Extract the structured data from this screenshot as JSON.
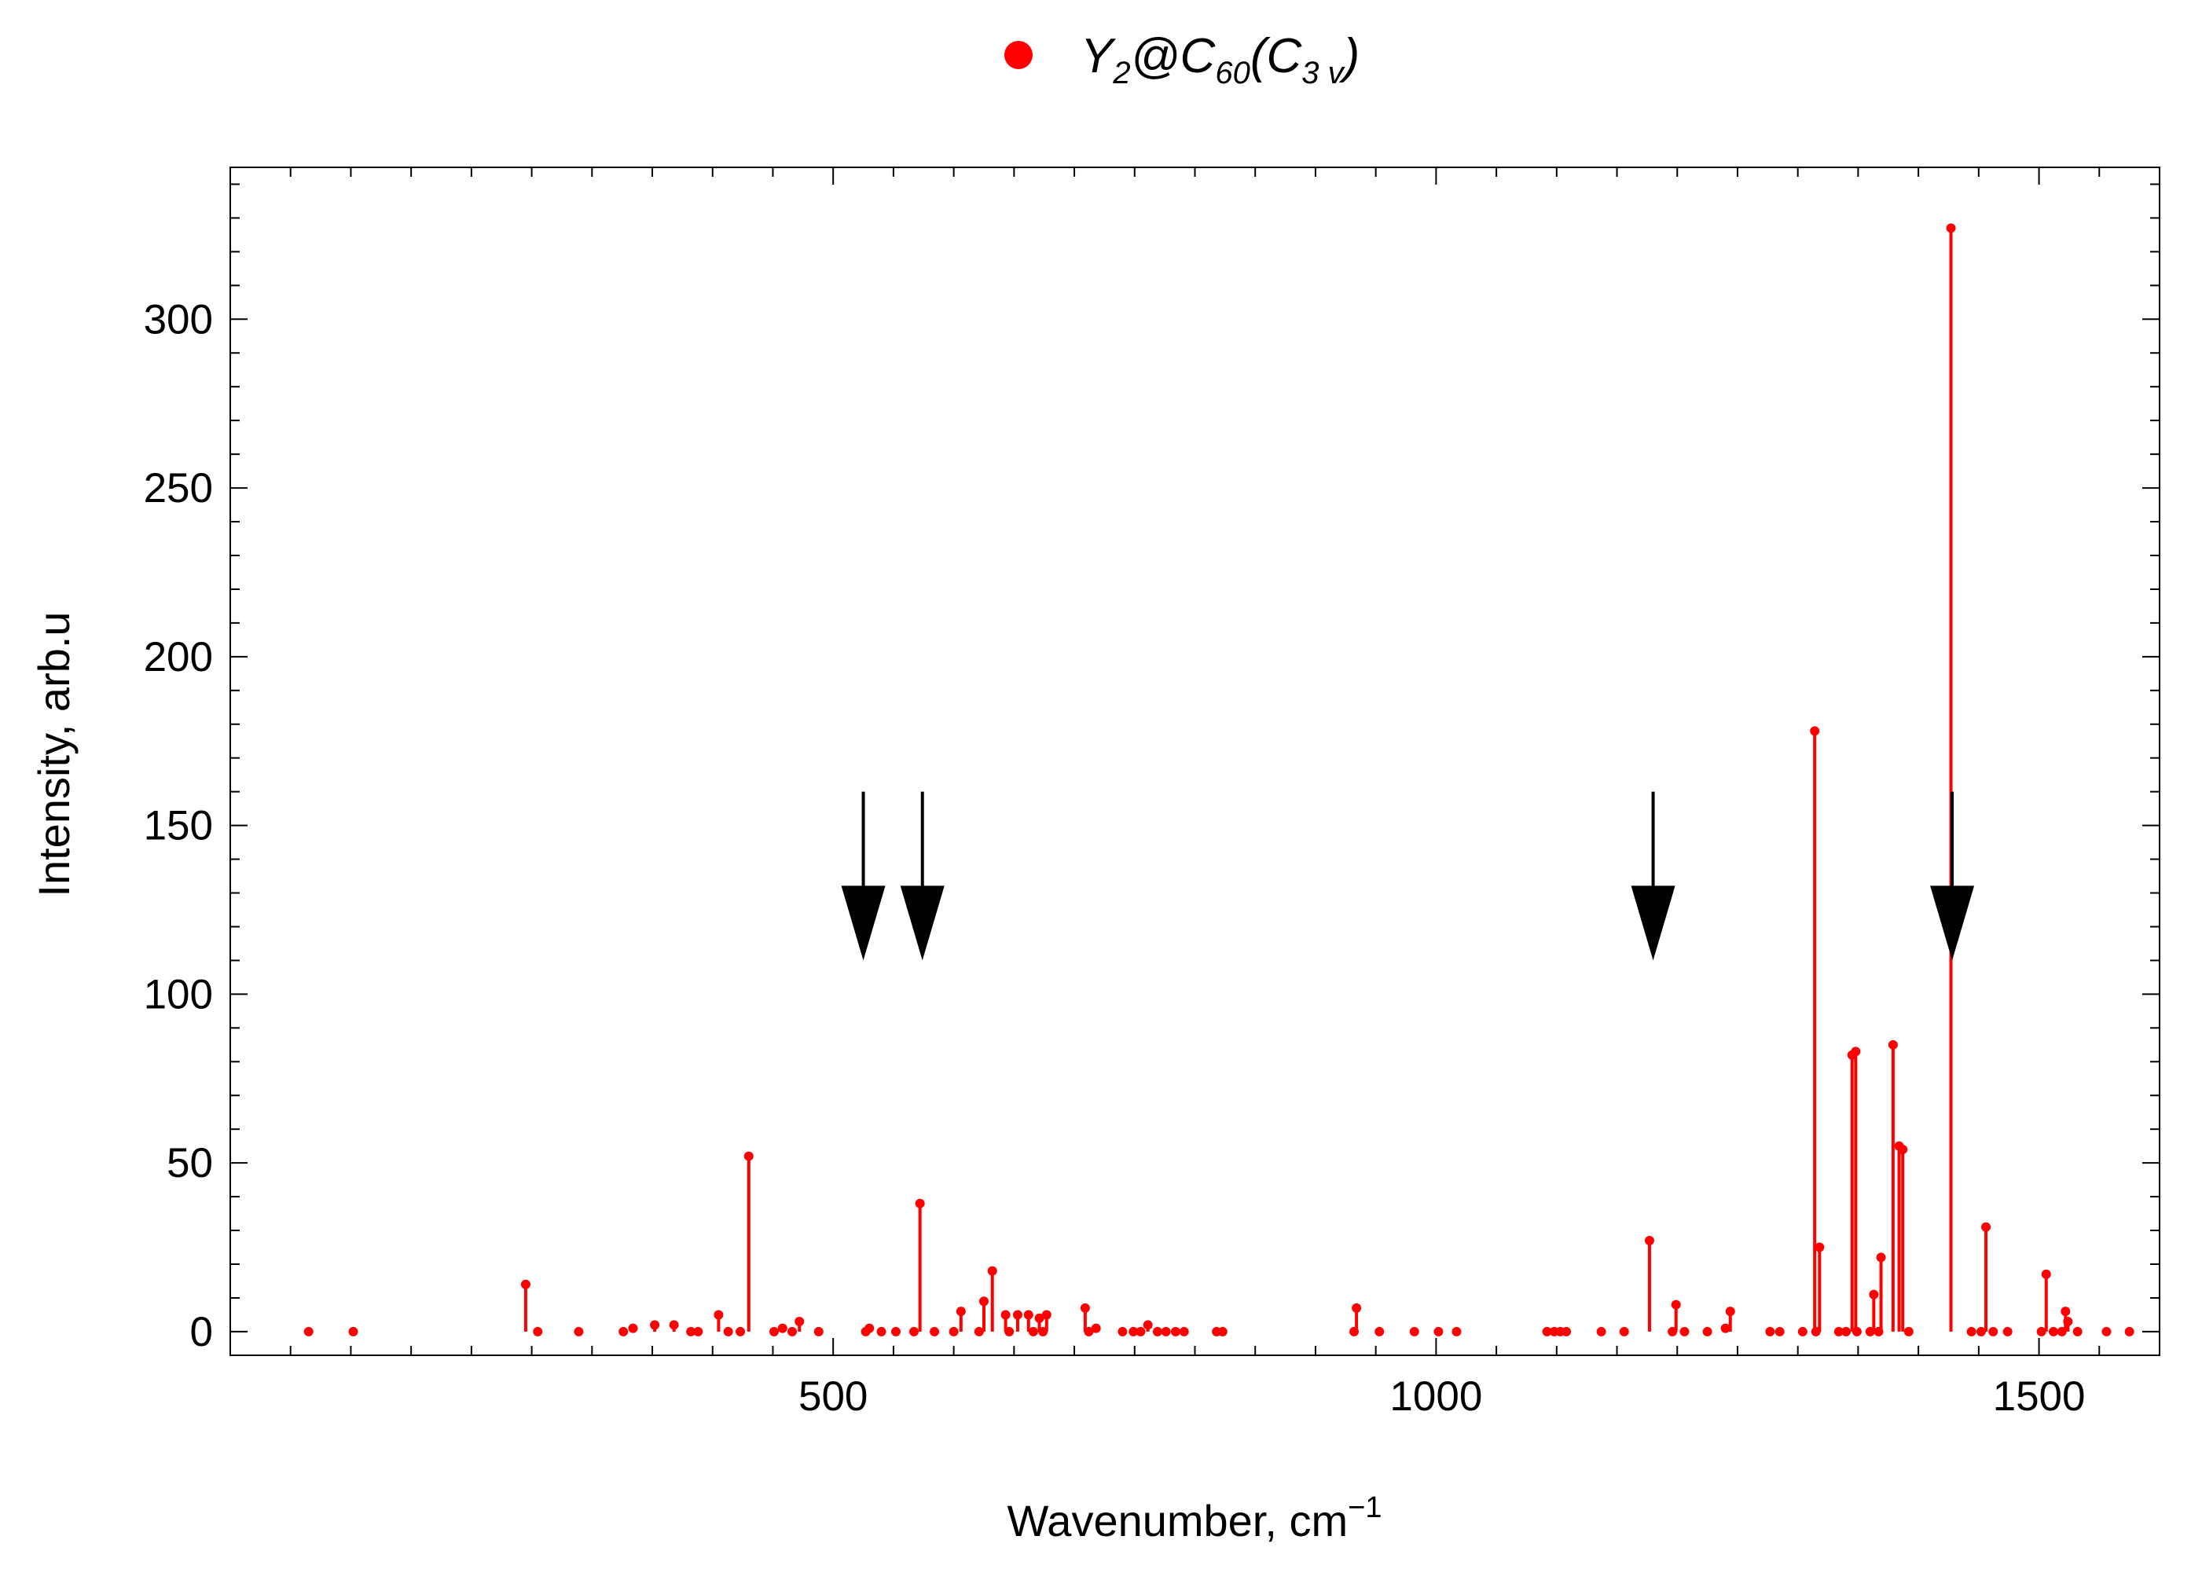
{
  "chart_data": {
    "type": "scatter",
    "style": "stick-spectrum",
    "xlabel": "Wavenumber, cm",
    "xlabel_superscript": "−1",
    "ylabel": "Intensity, arb.u",
    "xlim": [
      0,
      1600
    ],
    "ylim": [
      -7,
      345
    ],
    "x_ticks": [
      500,
      1000,
      1500
    ],
    "y_ticks": [
      0,
      50,
      100,
      150,
      200,
      250,
      300
    ],
    "grid": false,
    "legend_position": "top-center",
    "legend": {
      "base1": "Y",
      "sub1": "2",
      "mid": "@C",
      "sub2": "60",
      "open": "(C",
      "sub3": "3 v",
      "close": ")"
    },
    "series": [
      {
        "color": "#ff0000",
        "x": [
          65,
          102,
          245,
          255,
          289,
          326,
          334,
          352,
          368,
          382,
          388,
          405,
          413,
          423,
          430,
          451,
          458,
          466,
          472,
          488,
          527,
          530,
          540,
          552,
          567,
          572,
          584,
          600,
          606,
          621,
          625,
          632,
          643,
          646,
          653,
          662,
          666,
          671,
          674,
          677,
          709,
          712,
          718,
          740,
          749,
          755,
          761,
          769,
          776,
          784,
          791,
          818,
          823,
          932,
          934,
          953,
          982,
          1002,
          1017,
          1092,
          1098,
          1103,
          1108,
          1137,
          1156,
          1177,
          1196,
          1199,
          1206,
          1225,
          1240,
          1244,
          1277,
          1285,
          1304,
          1314,
          1315,
          1318,
          1334,
          1340,
          1345,
          1348,
          1349,
          1360,
          1363,
          1367,
          1369,
          1379,
          1384,
          1387,
          1392,
          1427,
          1444,
          1452,
          1456,
          1462,
          1474,
          1502,
          1506,
          1512,
          1519,
          1522,
          1524,
          1532,
          1556,
          1575
        ],
        "y": [
          0,
          0,
          14,
          0,
          0,
          0,
          1,
          2,
          2,
          0,
          0,
          5,
          0,
          0,
          52,
          0,
          1,
          0,
          3,
          0,
          0,
          1,
          0,
          0,
          0,
          38,
          0,
          0,
          6,
          0,
          9,
          18,
          5,
          0,
          5,
          5,
          0,
          4,
          0,
          5,
          7,
          0,
          1,
          0,
          0,
          0,
          2,
          0,
          0,
          0,
          0,
          0,
          0,
          0,
          7,
          0,
          0,
          0,
          0,
          0,
          0,
          0,
          0,
          0,
          0,
          27,
          0,
          8,
          0,
          0,
          1,
          6,
          0,
          0,
          0,
          178,
          0,
          25,
          0,
          0,
          82,
          83,
          0,
          0,
          11,
          0,
          22,
          85,
          55,
          54,
          0,
          327,
          0,
          0,
          31,
          0,
          0,
          0,
          17,
          0,
          0,
          6,
          3,
          0,
          0,
          0
        ]
      }
    ],
    "annotations": {
      "arrows_x": [
        525,
        574,
        1180,
        1428
      ],
      "arrow_top_y": 160,
      "arrow_tip_y": 110,
      "arrow_color": "#000000"
    }
  }
}
